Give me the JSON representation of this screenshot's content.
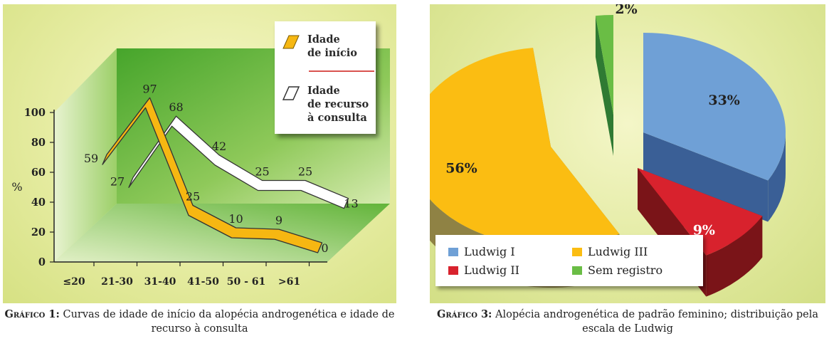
{
  "chart_data": [
    {
      "type": "line",
      "ylabel": "%",
      "categories": [
        "≤20",
        "21-30",
        "31-40",
        "41-50",
        "50 - 61",
        ">61"
      ],
      "yticks": [
        "0",
        "20",
        "40",
        "60",
        "80",
        "100"
      ],
      "ylim": [
        0,
        100
      ],
      "series": [
        {
          "name": "Idade de início",
          "values": [
            59,
            97,
            25,
            10,
            9,
            0
          ],
          "color": "#f6b712"
        },
        {
          "name": "Idade de recurso à consulta",
          "values": [
            27,
            68,
            42,
            25,
            25,
            13
          ],
          "color": "#ffffff"
        }
      ],
      "point_labels": [
        [
          "59",
          "97",
          "25",
          "10",
          "9",
          "0"
        ],
        [
          "27",
          "68",
          "42",
          "25",
          "25",
          "13"
        ]
      ],
      "legend": [
        {
          "label_lines": [
            "Idade",
            "de início"
          ]
        },
        {
          "label_lines": [
            "Idade",
            "de recurso",
            "à consulta"
          ]
        }
      ],
      "caption": {
        "label": "Gráfico 1:",
        "text": "Curvas de idade de início da alopécia androgenética e idade de recurso à consulta"
      }
    },
    {
      "type": "pie",
      "slices": [
        {
          "name": "Ludwig I",
          "value": 33,
          "label": "33%",
          "color": "#6fa0d6"
        },
        {
          "name": "Ludwig II",
          "value": 9,
          "label": "9%",
          "color": "#d8222d"
        },
        {
          "name": "Ludwig III",
          "value": 56,
          "label": "56%",
          "color": "#fbbd12"
        },
        {
          "name": "Sem registro",
          "value": 2,
          "label": "2%",
          "color": "#6abd45"
        }
      ],
      "caption": {
        "label": "Gráfico 3:",
        "text": "Alopécia androgenética de padrão feminino; distribuição pela escala de Ludwig"
      }
    }
  ]
}
